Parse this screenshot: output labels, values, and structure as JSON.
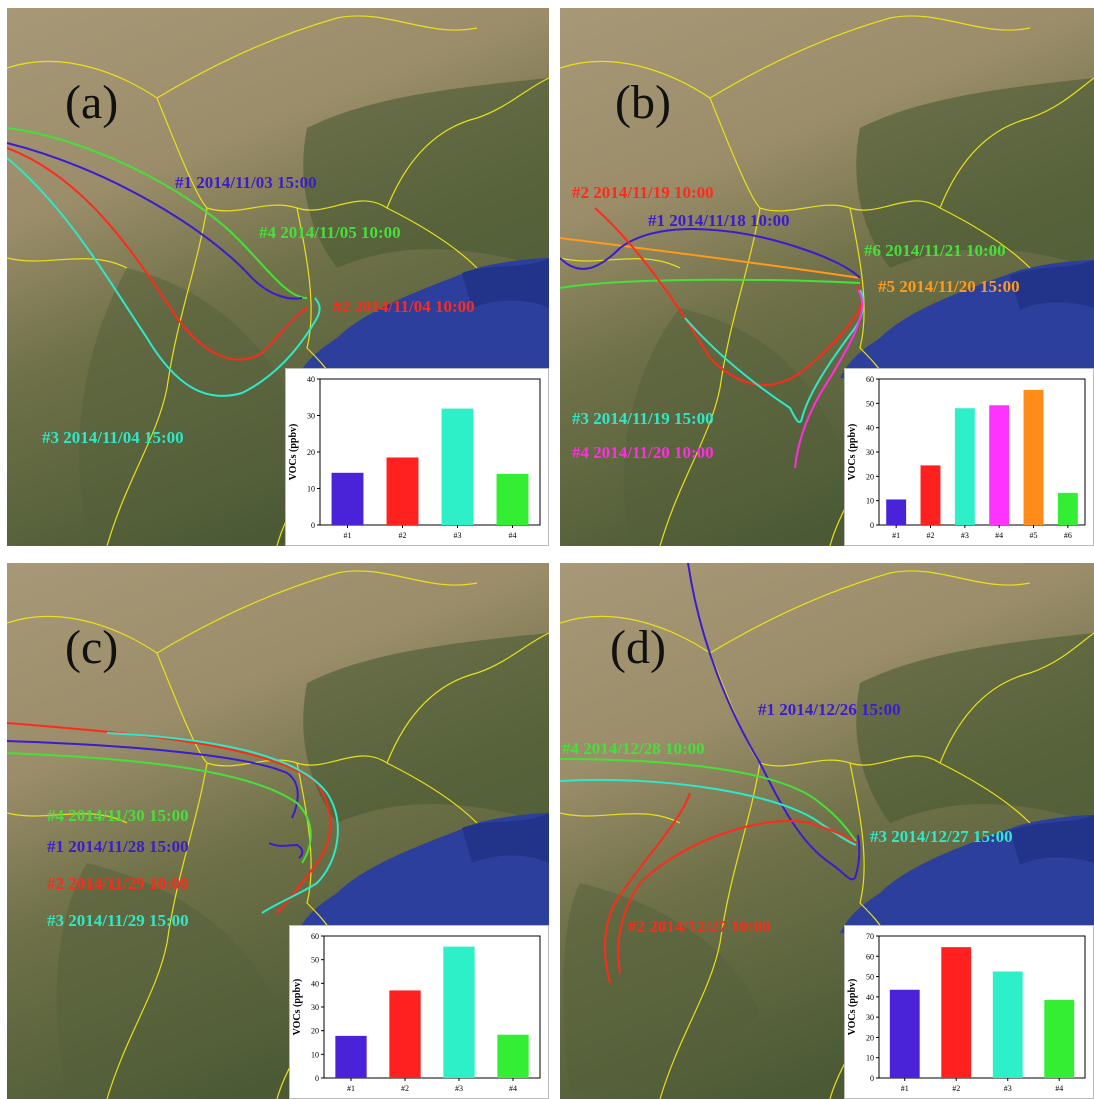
{
  "panels": [
    {
      "label": "(a)",
      "trajectories": [
        {
          "id": "#1",
          "text": "#1 2014/11/03 15:00",
          "color": "#3b1ccf"
        },
        {
          "id": "#2",
          "text": "#2 2014/11/04 10:00",
          "color": "#ff2a1a"
        },
        {
          "id": "#3",
          "text": "#3 2014/11/04 15:00",
          "color": "#2ee8c8"
        },
        {
          "id": "#4",
          "text": "#4 2014/11/05 10:00",
          "color": "#45e03a"
        }
      ]
    },
    {
      "label": "(b)",
      "trajectories": [
        {
          "id": "#1",
          "text": "#1 2014/11/18 10:00",
          "color": "#3b1ccf"
        },
        {
          "id": "#2",
          "text": "#2 2014/11/19 10:00",
          "color": "#ff2a1a"
        },
        {
          "id": "#3",
          "text": "#3 2014/11/19 15:00",
          "color": "#2ee8c8"
        },
        {
          "id": "#4",
          "text": "#4 2014/11/20 10:00",
          "color": "#ff2ee0"
        },
        {
          "id": "#5",
          "text": "#5 2014/11/20 15:00",
          "color": "#ff9a1a"
        },
        {
          "id": "#6",
          "text": "#6 2014/11/21 10:00",
          "color": "#45e03a"
        }
      ]
    },
    {
      "label": "(c)",
      "trajectories": [
        {
          "id": "#1",
          "text": "#1 2014/11/28 15:00",
          "color": "#3b1ccf"
        },
        {
          "id": "#2",
          "text": "#2 2014/11/29 10:00",
          "color": "#ff2a1a"
        },
        {
          "id": "#3",
          "text": "#3 2014/11/29 15:00",
          "color": "#2ee8c8"
        },
        {
          "id": "#4",
          "text": "#4 2014/11/30 15:00",
          "color": "#45e03a"
        }
      ]
    },
    {
      "label": "(d)",
      "trajectories": [
        {
          "id": "#1",
          "text": "#1 2014/12/26 15:00",
          "color": "#3b1ccf"
        },
        {
          "id": "#2",
          "text": "#2 2014/12/27 10:00",
          "color": "#ff2a1a"
        },
        {
          "id": "#3",
          "text": "#3 2014/12/27 15:00",
          "color": "#2ee8c8"
        },
        {
          "id": "#4",
          "text": "#4 2014/12/28 10:00",
          "color": "#45e03a"
        }
      ]
    }
  ],
  "chart_data": [
    {
      "type": "bar",
      "panel": "(a)",
      "categories": [
        "#1",
        "#2",
        "#3",
        "#4"
      ],
      "values": [
        14.3,
        18.5,
        31.9,
        14.0
      ],
      "ylabel": "VOCs (ppbv)",
      "ylim": [
        0,
        40
      ],
      "yticks": [
        0,
        10,
        20,
        30,
        40
      ],
      "colors": [
        "#4a22d8",
        "#ff2020",
        "#2ef0c8",
        "#33ee33"
      ]
    },
    {
      "type": "bar",
      "panel": "(b)",
      "categories": [
        "#1",
        "#2",
        "#3",
        "#4",
        "#5",
        "#6"
      ],
      "values": [
        10.5,
        24.5,
        48.0,
        49.2,
        55.5,
        13.2
      ],
      "ylabel": "VOCs (ppbv)",
      "ylim": [
        0,
        60
      ],
      "yticks": [
        0,
        10,
        20,
        30,
        40,
        50,
        60
      ],
      "colors": [
        "#4a22d8",
        "#ff2020",
        "#2ef0c8",
        "#ff33ff",
        "#ff8c1a",
        "#33ee33"
      ]
    },
    {
      "type": "bar",
      "panel": "(c)",
      "categories": [
        "#1",
        "#2",
        "#3",
        "#4"
      ],
      "values": [
        17.8,
        37.0,
        55.5,
        18.3
      ],
      "ylabel": "VOCs (ppbv)",
      "ylim": [
        0,
        60
      ],
      "yticks": [
        0,
        10,
        20,
        30,
        40,
        50,
        60
      ],
      "colors": [
        "#4a22d8",
        "#ff2020",
        "#2ef0c8",
        "#33ee33"
      ]
    },
    {
      "type": "bar",
      "panel": "(d)",
      "categories": [
        "#1",
        "#2",
        "#3",
        "#4"
      ],
      "values": [
        43.5,
        64.5,
        52.5,
        38.5
      ],
      "ylabel": "VOCs (ppbv)",
      "ylim": [
        0,
        70
      ],
      "yticks": [
        0,
        10,
        20,
        30,
        40,
        50,
        60,
        70
      ],
      "colors": [
        "#4a22d8",
        "#ff2020",
        "#2ef0c8",
        "#33ee33"
      ]
    }
  ]
}
